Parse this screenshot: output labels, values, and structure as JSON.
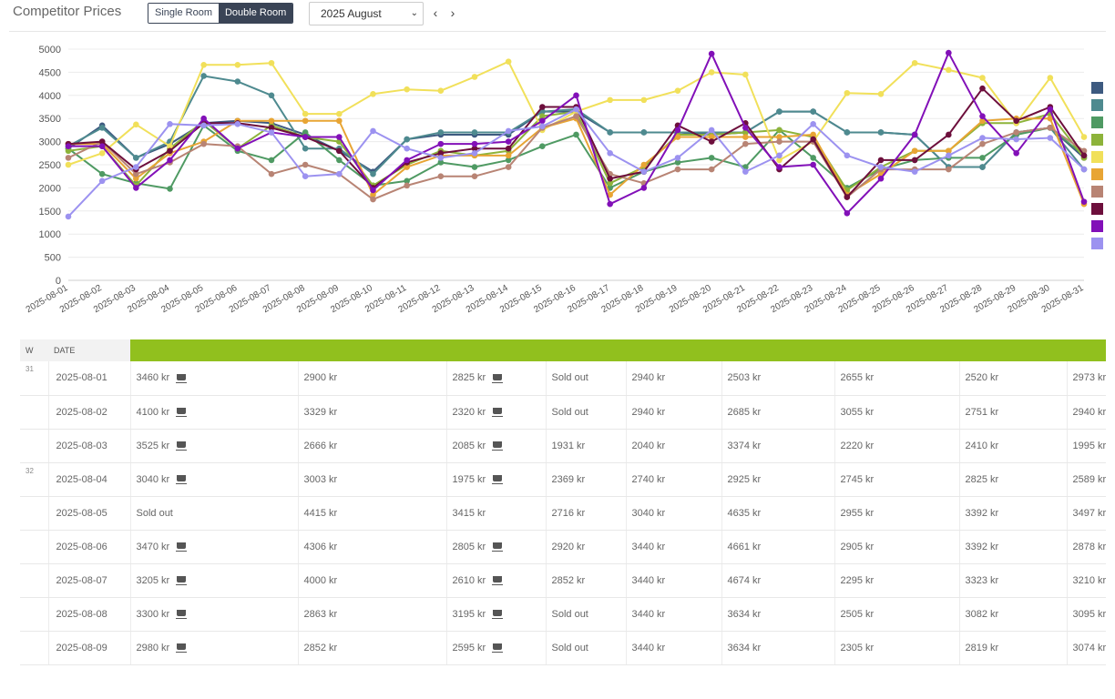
{
  "header": {
    "title": "Competitor Prices",
    "room_options": [
      "Single Room",
      "Double Room"
    ],
    "room_active": "Double Room",
    "month": "2025 August",
    "prev_icon": "chevron-left-icon",
    "next_icon": "chevron-right-icon"
  },
  "chart_data": {
    "type": "line",
    "x": [
      "2025-08-01",
      "2025-08-02",
      "2025-08-03",
      "2025-08-04",
      "2025-08-05",
      "2025-08-06",
      "2025-08-07",
      "2025-08-08",
      "2025-08-09",
      "2025-08-10",
      "2025-08-11",
      "2025-08-12",
      "2025-08-13",
      "2025-08-14",
      "2025-08-15",
      "2025-08-16",
      "2025-08-17",
      "2025-08-18",
      "2025-08-19",
      "2025-08-20",
      "2025-08-21",
      "2025-08-22",
      "2025-08-23",
      "2025-08-24",
      "2025-08-25",
      "2025-08-26",
      "2025-08-27",
      "2025-08-28",
      "2025-08-29",
      "2025-08-30",
      "2025-08-31"
    ],
    "ylim": [
      0,
      5000
    ],
    "yticks": [
      0,
      500,
      1000,
      1500,
      2000,
      2500,
      3000,
      3500,
      4000,
      4500,
      5000
    ],
    "grid": true,
    "legend": "right",
    "series": [
      {
        "color": "#3d5a80",
        "values": [
          2850,
          3350,
          2650,
          2950,
          3400,
          3450,
          3400,
          3150,
          2800,
          2350,
          3050,
          3150,
          3150,
          3150,
          3650,
          3650,
          3200,
          3200,
          3200,
          3150,
          3200,
          3650,
          3650,
          3200,
          3200,
          3150,
          2450,
          2450,
          3200,
          3300,
          2650
        ]
      },
      {
        "color": "#4e8a8f",
        "values": [
          2900,
          3300,
          2650,
          3000,
          4420,
          4300,
          4000,
          2850,
          2850,
          2300,
          3050,
          3200,
          3200,
          3200,
          3650,
          3700,
          3200,
          3200,
          3200,
          3200,
          3200,
          3650,
          3650,
          3200,
          3200,
          3150,
          2450,
          2450,
          3200,
          3300,
          2400
        ]
      },
      {
        "color": "#4f9a63",
        "values": [
          2850,
          2300,
          2100,
          1980,
          3350,
          2800,
          2600,
          3200,
          2600,
          2050,
          2150,
          2550,
          2450,
          2600,
          2900,
          3150,
          2000,
          2350,
          2550,
          2650,
          2450,
          3250,
          2650,
          2000,
          2400,
          2600,
          2650,
          2650,
          3150,
          3300,
          2700
        ]
      },
      {
        "color": "#8db33a",
        "values": [
          2800,
          2900,
          2050,
          2850,
          3450,
          2850,
          3350,
          3100,
          3000,
          2050,
          2500,
          2800,
          2700,
          2800,
          3550,
          3650,
          2100,
          2450,
          3150,
          3150,
          3200,
          3250,
          3100,
          1950,
          2450,
          2800,
          2800,
          3400,
          3400,
          3600,
          2650
        ]
      },
      {
        "color": "#f1e05a",
        "values": [
          2500,
          2750,
          3370,
          2900,
          4660,
          4660,
          4700,
          3600,
          3600,
          4030,
          4130,
          4100,
          4400,
          4730,
          3250,
          3650,
          3900,
          3900,
          4100,
          4500,
          4450,
          2600,
          3000,
          4050,
          4030,
          4700,
          4550,
          4380,
          3400,
          4380,
          3100
        ]
      },
      {
        "color": "#e8a534",
        "values": [
          2950,
          2950,
          2200,
          2750,
          3000,
          3450,
          3450,
          3450,
          3450,
          1850,
          2450,
          2700,
          2700,
          2700,
          3300,
          3500,
          1850,
          2500,
          3100,
          3100,
          3100,
          3100,
          3150,
          1850,
          2300,
          2800,
          2800,
          3450,
          3500,
          3500,
          1650
        ]
      },
      {
        "color": "#b88474",
        "values": [
          2650,
          3000,
          2300,
          2550,
          2950,
          2900,
          2300,
          2500,
          2300,
          1750,
          2050,
          2250,
          2250,
          2450,
          3300,
          3550,
          2300,
          2100,
          2400,
          2400,
          2950,
          3000,
          3000,
          1800,
          2400,
          2400,
          2400,
          2950,
          3200,
          3300,
          2800
        ]
      },
      {
        "color": "#6d0f3c",
        "values": [
          2950,
          3000,
          2400,
          2800,
          3400,
          3400,
          3300,
          3100,
          2800,
          2000,
          2550,
          2750,
          2850,
          2850,
          3750,
          3750,
          2200,
          2350,
          3350,
          3000,
          3400,
          2400,
          3050,
          1800,
          2600,
          2600,
          3150,
          4150,
          3450,
          3750,
          2700
        ]
      },
      {
        "color": "#8210b8",
        "values": [
          2900,
          2900,
          2000,
          2600,
          3500,
          2850,
          3200,
          3100,
          3100,
          1950,
          2600,
          2950,
          2950,
          3000,
          3450,
          4000,
          1650,
          2000,
          3250,
          4900,
          3300,
          2450,
          2500,
          1450,
          2200,
          3150,
          4920,
          3550,
          2750,
          3700,
          1700
        ]
      },
      {
        "color": "#9c92f0",
        "values": [
          1380,
          2150,
          2450,
          3380,
          3350,
          3380,
          3200,
          2250,
          2300,
          3230,
          2850,
          2650,
          2750,
          3230,
          3330,
          3700,
          2750,
          2350,
          2650,
          3250,
          2350,
          2700,
          3380,
          2700,
          2450,
          2350,
          2700,
          3080,
          3050,
          3080,
          2400
        ]
      }
    ]
  },
  "table": {
    "headers": {
      "week": "W",
      "date": "DATE"
    },
    "rows": [
      {
        "week": "31",
        "date": "2025-08-01",
        "cells": [
          "3460 kr",
          "2900 kr",
          "2825 kr",
          "Sold out",
          "2940 kr",
          "2503 kr",
          "2655 kr",
          "2520 kr",
          "2973 kr"
        ]
      },
      {
        "week": "",
        "date": "2025-08-02",
        "cells": [
          "4100 kr",
          "3329 kr",
          "2320 kr",
          "Sold out",
          "2940 kr",
          "2685 kr",
          "3055 kr",
          "2751 kr",
          "2940 kr"
        ]
      },
      {
        "week": "",
        "date": "2025-08-03",
        "cells": [
          "3525 kr",
          "2666 kr",
          "2085 kr",
          "1931 kr",
          "2040 kr",
          "3374 kr",
          "2220 kr",
          "2410 kr",
          "1995 kr"
        ]
      },
      {
        "week": "32",
        "date": "2025-08-04",
        "cells": [
          "3040 kr",
          "3003 kr",
          "1975 kr",
          "2369 kr",
          "2740 kr",
          "2925 kr",
          "2745 kr",
          "2825 kr",
          "2589 kr"
        ]
      },
      {
        "week": "",
        "date": "2025-08-05",
        "cells": [
          "Sold out",
          "4415 kr",
          "3415 kr",
          "2716 kr",
          "3040 kr",
          "4635 kr",
          "2955 kr",
          "3392 kr",
          "3497 kr"
        ]
      },
      {
        "week": "",
        "date": "2025-08-06",
        "cells": [
          "3470 kr",
          "4306 kr",
          "2805 kr",
          "2920 kr",
          "3440 kr",
          "4661 kr",
          "2905 kr",
          "3392 kr",
          "2878 kr"
        ]
      },
      {
        "week": "",
        "date": "2025-08-07",
        "cells": [
          "3205 kr",
          "4000 kr",
          "2610 kr",
          "2852 kr",
          "3440 kr",
          "4674 kr",
          "2295 kr",
          "3323 kr",
          "3210 kr"
        ]
      },
      {
        "week": "",
        "date": "2025-08-08",
        "cells": [
          "3300 kr",
          "2863 kr",
          "3195 kr",
          "Sold out",
          "3440 kr",
          "3634 kr",
          "2505 kr",
          "3082 kr",
          "3095 kr"
        ]
      },
      {
        "week": "",
        "date": "2025-08-09",
        "cells": [
          "2980 kr",
          "2852 kr",
          "2595 kr",
          "Sold out",
          "3440 kr",
          "3634 kr",
          "2305 kr",
          "2819 kr",
          "3074 kr"
        ]
      }
    ],
    "cup_icon_rows": [
      0,
      1,
      2,
      3,
      5,
      6,
      7,
      8
    ],
    "cup_icon_cols": [
      0,
      2
    ]
  }
}
